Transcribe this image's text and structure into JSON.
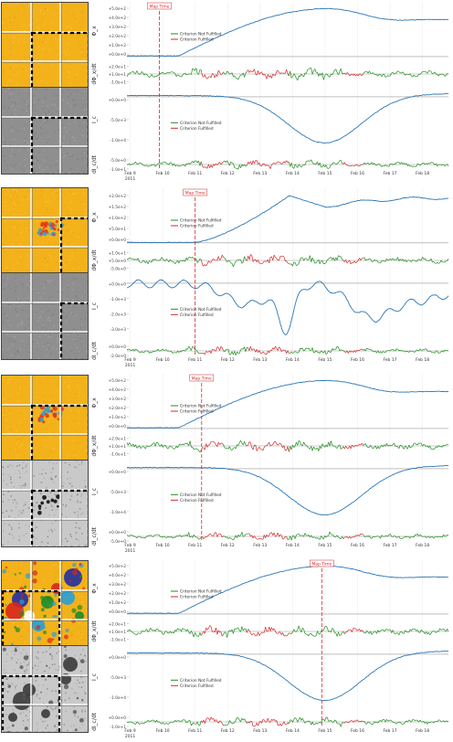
{
  "colors": {
    "blue": "#2b76b7",
    "green": "#1e8c1e",
    "red": "#d62728",
    "maptime": "#d62728",
    "gridline": "#999999",
    "tile_border": "#555555"
  },
  "chart_data": [
    {
      "type": "line",
      "x_dates": [
        "Feb 9",
        "Feb 10",
        "Feb 11",
        "Feb 12",
        "Feb 13",
        "Feb 14",
        "Feb 15",
        "Feb 16",
        "Feb 17",
        "Feb 18"
      ],
      "year_label": "2011",
      "map_time_label": "Map Time",
      "map_time_x": 9.9,
      "legend": [
        "Criterion Not Fulfilled",
        "Criterion Fulfilled"
      ],
      "panels": [
        {
          "ylabel": "Φ_x",
          "ticks": [
            "+5.0e+2",
            "+4.0e+2",
            "+3.0e+2",
            "+2.0e+2",
            "+1.0e+2",
            "+0.0e+0"
          ],
          "series": "flux_up_early"
        },
        {
          "ylabel": "dΦ_x/dt",
          "ticks": [
            "+2.0e+1",
            "+1.0e+1",
            "-1.0e+1"
          ],
          "series": "deriv"
        },
        {
          "ylabel": "I_c",
          "ticks": [
            "+0.0e+0",
            "-5.0e+3",
            "-1.0e+4"
          ],
          "series": "dip_mid"
        },
        {
          "ylabel": "dI_c/dt",
          "ticks": [
            "-5.0e+0",
            "-1.0e+1"
          ],
          "series": "deriv2"
        }
      ]
    },
    {
      "type": "line",
      "x_dates": [
        "Feb 9",
        "Feb 10",
        "Feb 11",
        "Feb 12",
        "Feb 13",
        "Feb 14",
        "Feb 15",
        "Feb 16",
        "Feb 17",
        "Feb 18"
      ],
      "year_label": "2011",
      "map_time_label": "Map Time",
      "map_time_x": 11.0,
      "legend": [
        "Criterion Not Fulfilled",
        "Criterion Fulfilled"
      ],
      "panels": [
        {
          "ylabel": "Φ_x",
          "ticks": [
            "+2.0e+2",
            "+1.5e+2",
            "+1.0e+2",
            "+5.0e+1",
            "+0.0e+0"
          ],
          "series": "flux_peak14"
        },
        {
          "ylabel": "dΦ_x/dt",
          "ticks": [
            "+1.0e+1",
            "+5.0e+0",
            "-5.0e+0"
          ],
          "series": "deriv"
        },
        {
          "ylabel": "I_c",
          "ticks": [
            "+0.0e+0",
            "-1.0e+3",
            "-2.0e+3",
            "-3.0e+3"
          ],
          "series": "noisy_dip"
        },
        {
          "ylabel": "dI_c/dt",
          "ticks": [
            "+0.0e+0",
            "-2.0e+0"
          ],
          "series": "deriv2"
        }
      ]
    },
    {
      "type": "line",
      "x_dates": [
        "Feb 9",
        "Feb 10",
        "Feb 11",
        "Feb 12",
        "Feb 13",
        "Feb 14",
        "Feb 15",
        "Feb 16",
        "Feb 17",
        "Feb 18"
      ],
      "year_label": "2011",
      "map_time_label": "Map Time",
      "map_time_x": 11.2,
      "legend": [
        "Criterion Not Fulfilled",
        "Criterion Fulfilled"
      ],
      "panels": [
        {
          "ylabel": "Φ_x",
          "ticks": [
            "+5.0e+2",
            "+4.0e+2",
            "+3.0e+2",
            "+2.0e+2",
            "+1.0e+2",
            "+0.0e+0"
          ],
          "series": "flux_up_early"
        },
        {
          "ylabel": "dΦ_x/dt",
          "ticks": [
            "+2.0e+1",
            "+1.0e+1",
            "-1.0e+1"
          ],
          "series": "deriv"
        },
        {
          "ylabel": "I_c",
          "ticks": [
            "+0.0e+0",
            "-5.0e+3",
            "-1.0e+4"
          ],
          "series": "dip_mid"
        },
        {
          "ylabel": "dI_c/dt",
          "ticks": [
            "+0.0e+0",
            "-5.0e+0"
          ],
          "series": "deriv2"
        }
      ]
    },
    {
      "type": "line",
      "x_dates": [
        "Feb 9",
        "Feb 10",
        "Feb 11",
        "Feb 12",
        "Feb 13",
        "Feb 14",
        "Feb 15",
        "Feb 16",
        "Feb 17",
        "Feb 18"
      ],
      "year_label": "2011",
      "map_time_label": "Map Time",
      "map_time_x": 14.9,
      "legend": [
        "Criterion Not Fulfilled",
        "Criterion Fulfilled"
      ],
      "panels": [
        {
          "ylabel": "Φ_x",
          "ticks": [
            "+5.0e+2",
            "+4.0e+2",
            "+3.0e+2",
            "+2.0e+2",
            "+1.0e+2",
            "+0.0e+0"
          ],
          "series": "flux_up_early"
        },
        {
          "ylabel": "dΦ_x/dt",
          "ticks": [
            "+2.0e+1",
            "+1.0e+1",
            "-1.0e+1"
          ],
          "series": "deriv"
        },
        {
          "ylabel": "I_c",
          "ticks": [
            "+0.0e+0",
            "-5.0e+3",
            "-1.0e+4"
          ],
          "series": "dip_mid"
        },
        {
          "ylabel": "dI_c/dt",
          "ticks": [
            "+0.0e+0",
            "-1.0e+1"
          ],
          "series": "deriv2"
        }
      ]
    }
  ],
  "tiles": [
    {
      "kind": "magnetogram",
      "highlight": [
        1,
        1
      ]
    },
    {
      "kind": "continuum",
      "highlight": [
        1,
        1
      ]
    },
    {
      "kind": "magnetogram_active",
      "highlight": [
        2,
        1
      ]
    },
    {
      "kind": "continuum",
      "highlight": [
        2,
        1
      ]
    },
    {
      "kind": "magnetogram_active2",
      "highlight": [
        1,
        1
      ]
    },
    {
      "kind": "continuum_spots",
      "highlight": [
        1,
        1
      ]
    },
    {
      "kind": "magnetogram_strong",
      "highlight": [
        0,
        1
      ]
    },
    {
      "kind": "continuum_bigspots",
      "highlight": [
        0,
        1
      ]
    }
  ]
}
